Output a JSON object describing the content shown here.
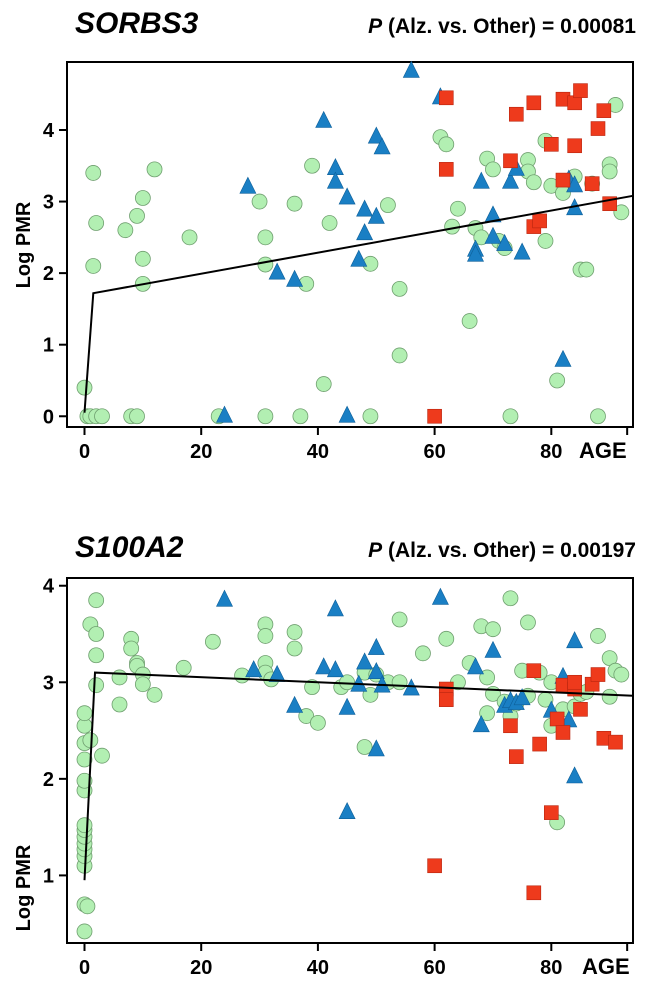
{
  "colors": {
    "circle": "#b2efb2",
    "triangle": "#1a7fc4",
    "square": "#ee3a1c",
    "trend": "#000000"
  },
  "chart_data": [
    {
      "type": "scatter",
      "title": "SORBS3",
      "subtitle_p": "P",
      "subtitle_rest": " (Alz. vs. Other) = 0.00081",
      "xlabel": "AGE",
      "ylabel": "Log PMR",
      "xlim": [
        -3,
        94
      ],
      "ylim": [
        -0.15,
        4.95
      ],
      "xticks": [
        0,
        20,
        40,
        60,
        80
      ],
      "yticks": [
        0,
        1,
        2,
        3,
        4
      ],
      "trend": [
        [
          0,
          0.05
        ],
        [
          1.5,
          1.72
        ],
        [
          94,
          3.08
        ]
      ],
      "series": [
        {
          "marker": "circle",
          "points": [
            [
              0,
              0.4
            ],
            [
              0.5,
              0
            ],
            [
              1,
              0
            ],
            [
              2,
              0
            ],
            [
              1.5,
              3.4
            ],
            [
              2,
              2.7
            ],
            [
              1.5,
              2.1
            ],
            [
              3,
              0
            ],
            [
              7,
              2.6
            ],
            [
              8,
              0
            ],
            [
              9,
              2.8
            ],
            [
              9,
              0
            ],
            [
              10,
              2.2
            ],
            [
              10,
              1.85
            ],
            [
              10,
              3.05
            ],
            [
              12,
              3.45
            ],
            [
              18,
              2.5
            ],
            [
              23,
              0
            ],
            [
              30,
              3
            ],
            [
              31,
              2.5
            ],
            [
              31,
              2.12
            ],
            [
              31,
              0
            ],
            [
              36,
              2.97
            ],
            [
              37,
              0
            ],
            [
              38,
              1.85
            ],
            [
              39,
              3.5
            ],
            [
              41,
              0.45
            ],
            [
              42,
              2.7
            ],
            [
              49,
              2.13
            ],
            [
              49,
              0
            ],
            [
              52,
              2.95
            ],
            [
              54,
              1.78
            ],
            [
              54,
              0.85
            ],
            [
              61,
              3.9
            ],
            [
              62,
              3.8
            ],
            [
              63,
              2.65
            ],
            [
              64,
              2.9
            ],
            [
              66,
              1.33
            ],
            [
              67,
              2.63
            ],
            [
              68,
              2.5
            ],
            [
              69,
              3.6
            ],
            [
              70,
              3.45
            ],
            [
              71,
              2.45
            ],
            [
              72,
              2.35
            ],
            [
              73,
              0
            ],
            [
              76,
              3.58
            ],
            [
              76,
              3.42
            ],
            [
              77,
              3.27
            ],
            [
              79,
              3.85
            ],
            [
              79,
              2.45
            ],
            [
              80,
              3.22
            ],
            [
              81,
              0.5
            ],
            [
              82,
              3.12
            ],
            [
              84,
              3.35
            ],
            [
              85,
              2.05
            ],
            [
              86,
              2.05
            ],
            [
              87,
              3.25
            ],
            [
              88,
              0
            ],
            [
              90,
              3.52
            ],
            [
              90,
              3.42
            ],
            [
              91,
              4.35
            ],
            [
              92,
              2.85
            ]
          ]
        },
        {
          "marker": "triangle",
          "points": [
            [
              24,
              0
            ],
            [
              28,
              3.2
            ],
            [
              33,
              2
            ],
            [
              36,
              1.9
            ],
            [
              41,
              4.12
            ],
            [
              43,
              3.46
            ],
            [
              43,
              3.27
            ],
            [
              45,
              3.05
            ],
            [
              45,
              0
            ],
            [
              47,
              2.18
            ],
            [
              48,
              2.88
            ],
            [
              48,
              2.55
            ],
            [
              50,
              3.9
            ],
            [
              50,
              2.78
            ],
            [
              51,
              3.75
            ],
            [
              56,
              4.82
            ],
            [
              61,
              4.45
            ],
            [
              67,
              2.32
            ],
            [
              67,
              2.25
            ],
            [
              68,
              3.27
            ],
            [
              70,
              2.8
            ],
            [
              70,
              2.5
            ],
            [
              72,
              2.4
            ],
            [
              73,
              3.27
            ],
            [
              74,
              3.45
            ],
            [
              75,
              2.28
            ],
            [
              82,
              0.78
            ],
            [
              83,
              3.3
            ],
            [
              84,
              3.22
            ],
            [
              84,
              2.9
            ]
          ]
        },
        {
          "marker": "square",
          "points": [
            [
              60,
              0
            ],
            [
              62,
              4.45
            ],
            [
              62,
              3.45
            ],
            [
              73,
              3.57
            ],
            [
              74,
              4.22
            ],
            [
              77,
              4.38
            ],
            [
              77,
              2.65
            ],
            [
              78,
              2.73
            ],
            [
              80,
              3.8
            ],
            [
              82,
              4.43
            ],
            [
              82,
              3.3
            ],
            [
              84,
              4.38
            ],
            [
              84,
              3.78
            ],
            [
              85,
              4.55
            ],
            [
              87,
              3.25
            ],
            [
              88,
              4.02
            ],
            [
              89,
              4.27
            ],
            [
              90,
              2.97
            ]
          ]
        }
      ]
    },
    {
      "type": "scatter",
      "title": "S100A2",
      "subtitle_p": "P",
      "subtitle_rest": " (Alz. vs. Other) = 0.00197",
      "xlabel": "AGE",
      "ylabel": "Log PMR",
      "xlim": [
        -3,
        94
      ],
      "ylim": [
        0.3,
        4.08
      ],
      "xticks": [
        0,
        20,
        40,
        60,
        80
      ],
      "yticks": [
        1,
        2,
        3,
        4
      ],
      "trend": [
        [
          0,
          0.95
        ],
        [
          1.8,
          3.1
        ],
        [
          94,
          2.86
        ]
      ],
      "series": [
        {
          "marker": "circle",
          "points": [
            [
              0,
              0.42
            ],
            [
              0,
              0.7
            ],
            [
              0.5,
              0.68
            ],
            [
              0,
              1.1
            ],
            [
              0,
              1.2
            ],
            [
              0,
              1.27
            ],
            [
              0,
              1.33
            ],
            [
              0,
              1.4
            ],
            [
              0,
              1.47
            ],
            [
              0,
              1.52
            ],
            [
              0,
              1.88
            ],
            [
              0,
              1.98
            ],
            [
              0,
              2.2
            ],
            [
              0,
              2.37
            ],
            [
              0,
              2.55
            ],
            [
              0,
              2.68
            ],
            [
              1,
              3.6
            ],
            [
              1,
              2.4
            ],
            [
              2,
              3.85
            ],
            [
              2,
              3.28
            ],
            [
              2,
              3.5
            ],
            [
              2,
              2.97
            ],
            [
              3,
              2.24
            ],
            [
              6,
              2.77
            ],
            [
              6,
              3.05
            ],
            [
              8,
              3.45
            ],
            [
              8,
              3.35
            ],
            [
              9,
              3.2
            ],
            [
              9,
              3.17
            ],
            [
              10,
              3.08
            ],
            [
              10,
              2.98
            ],
            [
              12,
              2.87
            ],
            [
              17,
              3.15
            ],
            [
              22,
              3.42
            ],
            [
              27,
              3.07
            ],
            [
              31,
              3.6
            ],
            [
              31,
              3.48
            ],
            [
              31,
              3.2
            ],
            [
              31,
              3.1
            ],
            [
              32,
              3.03
            ],
            [
              36,
              3.52
            ],
            [
              36,
              3.35
            ],
            [
              38,
              2.65
            ],
            [
              39,
              2.95
            ],
            [
              40,
              2.58
            ],
            [
              44,
              2.95
            ],
            [
              45,
              3.0
            ],
            [
              48,
              2.33
            ],
            [
              48,
              3.1
            ],
            [
              49,
              2.87
            ],
            [
              50,
              3.08
            ],
            [
              52,
              3.0
            ],
            [
              54,
              3.0
            ],
            [
              54,
              3.65
            ],
            [
              58,
              3.3
            ],
            [
              62,
              3.45
            ],
            [
              64,
              3.0
            ],
            [
              66,
              3.2
            ],
            [
              68,
              3.58
            ],
            [
              69,
              2.68
            ],
            [
              69,
              3.05
            ],
            [
              70,
              3.55
            ],
            [
              70,
              2.88
            ],
            [
              72,
              2.8
            ],
            [
              73,
              3.87
            ],
            [
              73,
              2.65
            ],
            [
              74,
              2.78
            ],
            [
              75,
              3.12
            ],
            [
              76,
              3.62
            ],
            [
              76,
              2.86
            ],
            [
              78,
              3.1
            ],
            [
              79,
              2.82
            ],
            [
              80,
              3.0
            ],
            [
              80,
              2.55
            ],
            [
              81,
              1.55
            ],
            [
              82,
              2.72
            ],
            [
              84,
              2.75
            ],
            [
              85,
              2.88
            ],
            [
              86,
              2.9
            ],
            [
              88,
              3.48
            ],
            [
              90,
              3.25
            ],
            [
              90,
              2.85
            ],
            [
              91,
              3.12
            ],
            [
              92,
              3.08
            ]
          ]
        },
        {
          "marker": "triangle",
          "points": [
            [
              24,
              3.85
            ],
            [
              29,
              3.12
            ],
            [
              33,
              3.07
            ],
            [
              36,
              2.75
            ],
            [
              41,
              3.15
            ],
            [
              43,
              3.12
            ],
            [
              43,
              3.75
            ],
            [
              45,
              2.73
            ],
            [
              45,
              1.65
            ],
            [
              47,
              2.97
            ],
            [
              48,
              3.2
            ],
            [
              50,
              3.35
            ],
            [
              50,
              3.1
            ],
            [
              50,
              2.3
            ],
            [
              51,
              2.96
            ],
            [
              56,
              2.93
            ],
            [
              61,
              3.87
            ],
            [
              67,
              3.15
            ],
            [
              68,
              2.55
            ],
            [
              70,
              3.32
            ],
            [
              72,
              2.75
            ],
            [
              73,
              2.8
            ],
            [
              74,
              2.78
            ],
            [
              75,
              2.83
            ],
            [
              80,
              2.7
            ],
            [
              82,
              3.05
            ],
            [
              83,
              2.6
            ],
            [
              84,
              3.42
            ],
            [
              84,
              2.02
            ]
          ]
        },
        {
          "marker": "square",
          "points": [
            [
              60,
              1.1
            ],
            [
              62,
              2.93
            ],
            [
              62,
              2.82
            ],
            [
              73,
              2.55
            ],
            [
              74,
              2.23
            ],
            [
              77,
              3.12
            ],
            [
              77,
              0.82
            ],
            [
              78,
              2.36
            ],
            [
              80,
              1.65
            ],
            [
              81,
              2.62
            ],
            [
              82,
              2.48
            ],
            [
              82,
              2.97
            ],
            [
              84,
              2.93
            ],
            [
              84,
              3.0
            ],
            [
              85,
              2.72
            ],
            [
              87,
              2.98
            ],
            [
              88,
              3.08
            ],
            [
              89,
              2.42
            ],
            [
              91,
              2.38
            ]
          ]
        }
      ]
    }
  ]
}
